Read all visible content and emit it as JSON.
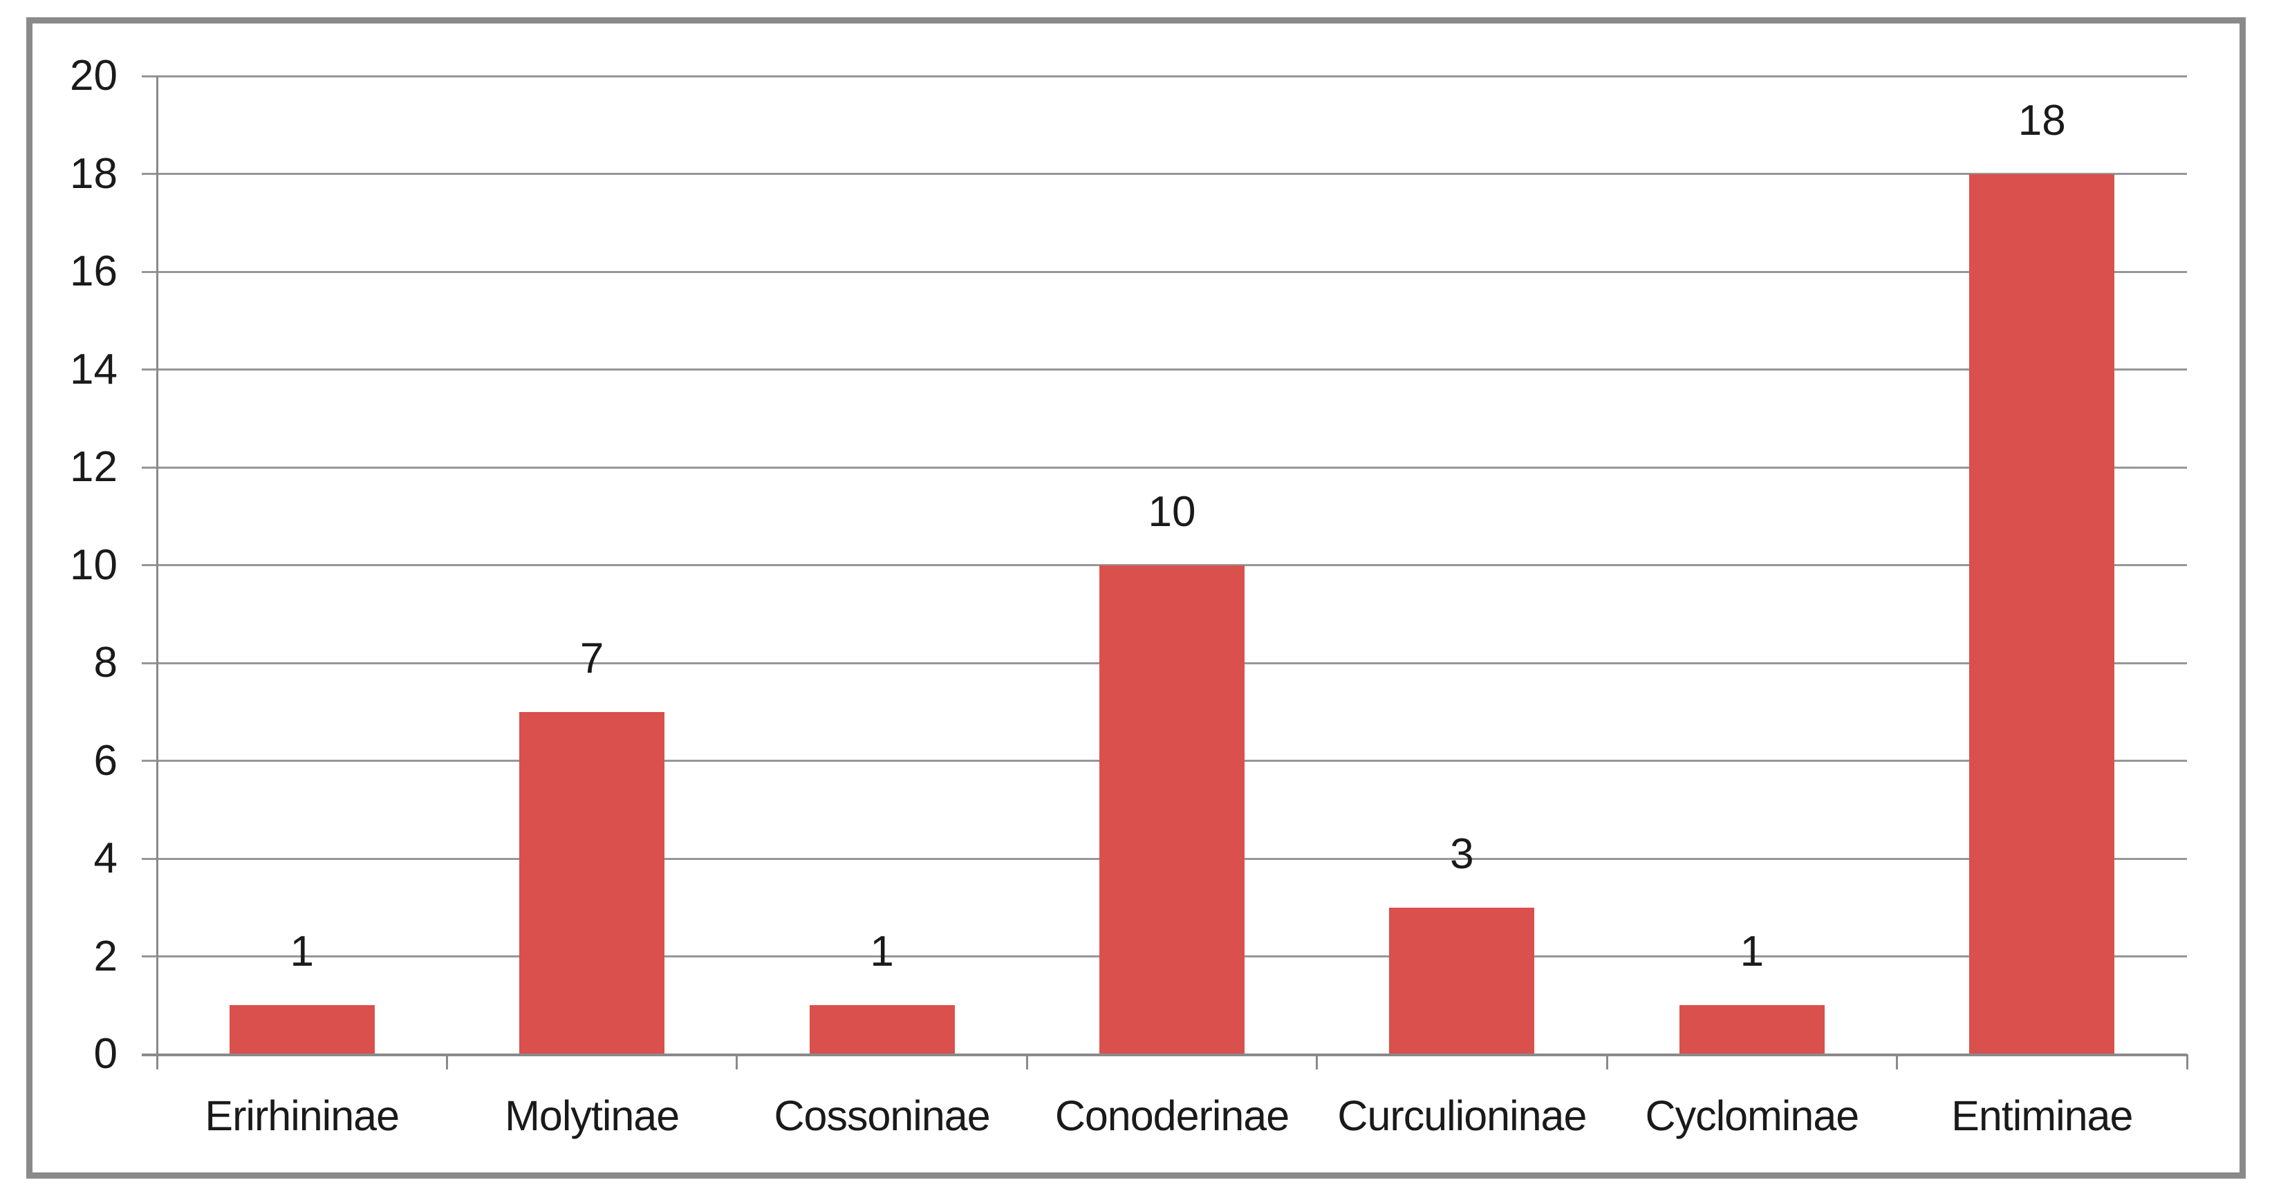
{
  "chart_data": {
    "type": "bar",
    "title": "",
    "xlabel": "",
    "ylabel": "",
    "categories": [
      "Erirhininae",
      "Molytinae",
      "Cossoninae",
      "Conoderinae",
      "Curculioninae",
      "Cyclominae",
      "Entiminae"
    ],
    "values": [
      1,
      7,
      1,
      10,
      3,
      1,
      18
    ],
    "bar_labels": [
      "1",
      "7",
      "1",
      "10",
      "3",
      "1",
      "18"
    ],
    "ylim": [
      0,
      20
    ],
    "ytick_step": 2,
    "ytick_labels": [
      "0",
      "2",
      "4",
      "6",
      "8",
      "10",
      "12",
      "14",
      "16",
      "18",
      "20"
    ],
    "grid": "horizontal",
    "legend": "none",
    "colors": {
      "bar": "#da504c",
      "gridline": "#969696",
      "axis": "#8a8a8a",
      "frame_border": "#8a8a8a",
      "text": "#1a1a1a",
      "background": "#ffffff"
    }
  }
}
